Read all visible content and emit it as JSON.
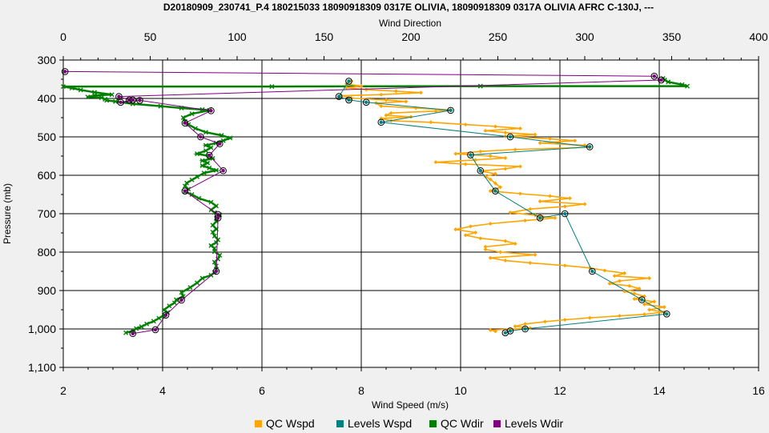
{
  "chart_data": {
    "type": "line",
    "title": "D20180909_230741_P.4 180215033 18090918309 0317E OLIVIA, 18090918309 0317A OLIVIA AFRC C-130J, ---",
    "top_axis_label": "Wind Direction",
    "xlabel": "Wind Speed (m/s)",
    "ylabel": "Pressure (mb)",
    "xlim": [
      2,
      16
    ],
    "x_ticks": [
      "2",
      "4",
      "6",
      "8",
      "10",
      "12",
      "14",
      "16"
    ],
    "top_xlim": [
      0,
      400
    ],
    "top_ticks": [
      "0",
      "50",
      "100",
      "150",
      "200",
      "250",
      "300",
      "350",
      "400"
    ],
    "ylim": [
      300,
      1100
    ],
    "y_reversed": true,
    "y_ticks": [
      "300",
      "400",
      "500",
      "600",
      "700",
      "800",
      "900",
      "1,000",
      "1,100"
    ],
    "grid": true,
    "legend_position": "bottom",
    "colors": {
      "qc_wspd": "#ffa500",
      "levels_wspd": "#008080",
      "qc_wdir": "#008000",
      "levels_wdir": "#800080"
    },
    "series": [
      {
        "name": "QC Wspd",
        "axis": "bottom",
        "points": [
          [
            7.8,
            355
          ],
          [
            7.7,
            362
          ],
          [
            8.0,
            368
          ],
          [
            7.7,
            372
          ],
          [
            8.1,
            377
          ],
          [
            8.7,
            381
          ],
          [
            9.2,
            385
          ],
          [
            8.4,
            390
          ],
          [
            7.6,
            393
          ],
          [
            7.8,
            399
          ],
          [
            8.5,
            404
          ],
          [
            8.9,
            408
          ],
          [
            8.3,
            412
          ],
          [
            8.4,
            420
          ],
          [
            9.1,
            425
          ],
          [
            9.8,
            430
          ],
          [
            9.5,
            433
          ],
          [
            8.6,
            438
          ],
          [
            8.5,
            444
          ],
          [
            9.0,
            448
          ],
          [
            8.4,
            452
          ],
          [
            8.6,
            458
          ],
          [
            9.4,
            462
          ],
          [
            10.1,
            468
          ],
          [
            10.7,
            473
          ],
          [
            11.2,
            478
          ],
          [
            10.5,
            484
          ],
          [
            10.9,
            489
          ],
          [
            11.5,
            494
          ],
          [
            10.9,
            499
          ],
          [
            11.8,
            505
          ],
          [
            12.3,
            510
          ],
          [
            11.6,
            516
          ],
          [
            12.5,
            522
          ],
          [
            12.6,
            527
          ],
          [
            11.1,
            533
          ],
          [
            10.4,
            538
          ],
          [
            9.9,
            544
          ],
          [
            10.6,
            550
          ],
          [
            10.9,
            555
          ],
          [
            10.3,
            560
          ],
          [
            9.5,
            566
          ],
          [
            10.1,
            571
          ],
          [
            11.2,
            577
          ],
          [
            10.9,
            583
          ],
          [
            10.4,
            589
          ],
          [
            10.7,
            596
          ],
          [
            10.5,
            603
          ],
          [
            10.6,
            611
          ],
          [
            10.7,
            621
          ],
          [
            10.8,
            631
          ],
          [
            10.6,
            641
          ],
          [
            11.2,
            648
          ],
          [
            11.8,
            654
          ],
          [
            12.2,
            660
          ],
          [
            11.6,
            668
          ],
          [
            12.5,
            675
          ],
          [
            12.1,
            681
          ],
          [
            11.4,
            688
          ],
          [
            11.0,
            697
          ],
          [
            11.5,
            704
          ],
          [
            11.9,
            711
          ],
          [
            11.3,
            718
          ],
          [
            10.6,
            726
          ],
          [
            10.2,
            733
          ],
          [
            9.9,
            741
          ],
          [
            10.3,
            749
          ],
          [
            10.1,
            756
          ],
          [
            10.4,
            764
          ],
          [
            10.9,
            771
          ],
          [
            11.1,
            778
          ],
          [
            10.5,
            786
          ],
          [
            10.5,
            793
          ],
          [
            10.8,
            800
          ],
          [
            11.5,
            807
          ],
          [
            10.6,
            815
          ],
          [
            10.9,
            822
          ],
          [
            11.4,
            828
          ],
          [
            12.1,
            835
          ],
          [
            12.6,
            841
          ],
          [
            12.9,
            848
          ],
          [
            13.3,
            855
          ],
          [
            13.1,
            862
          ],
          [
            13.8,
            868
          ],
          [
            13.2,
            875
          ],
          [
            13.0,
            882
          ],
          [
            13.4,
            888
          ],
          [
            13.6,
            895
          ],
          [
            13.3,
            902
          ],
          [
            13.5,
            908
          ],
          [
            13.7,
            915
          ],
          [
            13.5,
            922
          ],
          [
            13.9,
            929
          ],
          [
            13.7,
            936
          ],
          [
            14.1,
            943
          ],
          [
            13.8,
            950
          ],
          [
            14.1,
            956
          ],
          [
            13.7,
            962
          ],
          [
            13.2,
            966
          ],
          [
            12.6,
            971
          ],
          [
            12.1,
            976
          ],
          [
            11.7,
            981
          ],
          [
            11.3,
            987
          ],
          [
            11.1,
            993
          ],
          [
            11.4,
            998
          ],
          [
            10.6,
            1003
          ],
          [
            10.7,
            1006
          ]
        ]
      },
      {
        "name": "Levels Wspd",
        "axis": "bottom",
        "points": [
          [
            7.75,
            355
          ],
          [
            7.55,
            395
          ],
          [
            7.75,
            404
          ],
          [
            8.1,
            410
          ],
          [
            9.8,
            431
          ],
          [
            8.4,
            462
          ],
          [
            11.0,
            500
          ],
          [
            12.6,
            526
          ],
          [
            10.2,
            547
          ],
          [
            10.4,
            588
          ],
          [
            10.7,
            641
          ],
          [
            11.6,
            711
          ],
          [
            12.1,
            700
          ],
          [
            12.65,
            850
          ],
          [
            13.65,
            924
          ],
          [
            14.15,
            961
          ],
          [
            11.3,
            1000
          ],
          [
            11.0,
            1005
          ],
          [
            10.9,
            1010
          ]
        ]
      },
      {
        "name": "QC Wdir",
        "axis": "top",
        "points": [
          [
            345,
            348
          ],
          [
            346,
            352
          ],
          [
            348,
            357
          ],
          [
            356,
            364
          ],
          [
            359,
            368
          ],
          [
            240,
            368
          ],
          [
            120,
            369
          ],
          [
            0,
            369
          ],
          [
            5,
            373
          ],
          [
            10,
            378
          ],
          [
            18,
            384
          ],
          [
            28,
            390
          ],
          [
            18,
            392
          ],
          [
            14,
            396
          ],
          [
            22,
            398
          ],
          [
            24,
            402
          ],
          [
            25,
            405
          ],
          [
            30,
            408
          ],
          [
            40,
            414
          ],
          [
            56,
            420
          ],
          [
            68,
            425
          ],
          [
            80,
            429
          ],
          [
            84,
            431
          ],
          [
            74,
            440
          ],
          [
            69,
            450
          ],
          [
            70,
            460
          ],
          [
            72,
            468
          ],
          [
            76,
            478
          ],
          [
            82,
            488
          ],
          [
            91,
            496
          ],
          [
            96,
            503
          ],
          [
            92,
            510
          ],
          [
            88,
            516
          ],
          [
            82,
            522
          ],
          [
            85,
            528
          ],
          [
            82,
            536
          ],
          [
            77,
            544
          ],
          [
            84,
            550
          ],
          [
            86,
            556
          ],
          [
            80,
            562
          ],
          [
            83,
            568
          ],
          [
            80,
            575
          ],
          [
            84,
            581
          ],
          [
            88,
            587
          ],
          [
            81,
            594
          ],
          [
            77,
            604
          ],
          [
            74,
            612
          ],
          [
            71,
            620
          ],
          [
            70,
            628
          ],
          [
            72,
            636
          ],
          [
            70,
            643
          ],
          [
            74,
            650
          ],
          [
            78,
            660
          ],
          [
            85,
            670
          ],
          [
            88,
            680
          ],
          [
            85,
            690
          ],
          [
            87,
            697
          ],
          [
            90,
            703
          ],
          [
            88,
            712
          ],
          [
            88,
            720
          ],
          [
            86,
            730
          ],
          [
            88,
            740
          ],
          [
            86,
            748
          ],
          [
            87,
            758
          ],
          [
            89,
            768
          ],
          [
            88,
            775
          ],
          [
            85,
            783
          ],
          [
            87,
            790
          ],
          [
            87,
            799
          ],
          [
            90,
            808
          ],
          [
            89,
            818
          ],
          [
            87,
            826
          ],
          [
            88,
            836
          ],
          [
            88,
            845
          ],
          [
            87,
            853
          ],
          [
            85,
            860
          ],
          [
            80,
            868
          ],
          [
            77,
            880
          ],
          [
            73,
            892
          ],
          [
            68,
            905
          ],
          [
            69,
            915
          ],
          [
            65,
            924
          ],
          [
            64,
            932
          ],
          [
            61,
            940
          ],
          [
            58,
            950
          ],
          [
            60,
            957
          ],
          [
            58,
            964
          ],
          [
            55,
            972
          ],
          [
            52,
            980
          ],
          [
            48,
            987
          ],
          [
            45,
            994
          ],
          [
            42,
            999
          ],
          [
            40,
            1005
          ],
          [
            36,
            1010
          ]
        ]
      },
      {
        "name": "Levels Wdir",
        "axis": "top",
        "points": [
          [
            1,
            330
          ],
          [
            340,
            342
          ],
          [
            344,
            352
          ],
          [
            32,
            395
          ],
          [
            38,
            404
          ],
          [
            40,
            404
          ],
          [
            33,
            410
          ],
          [
            44,
            405
          ],
          [
            85,
            432
          ],
          [
            70,
            464
          ],
          [
            79,
            500
          ],
          [
            90,
            518
          ],
          [
            84,
            548
          ],
          [
            92,
            588
          ],
          [
            70,
            641
          ],
          [
            89,
            702
          ],
          [
            89,
            711
          ],
          [
            88,
            850
          ],
          [
            68,
            925
          ],
          [
            59,
            964
          ],
          [
            53,
            1002
          ],
          [
            40,
            1012
          ]
        ]
      }
    ],
    "legend": [
      "QC Wspd",
      "Levels Wspd",
      "QC Wdir",
      "Levels Wdir"
    ]
  }
}
